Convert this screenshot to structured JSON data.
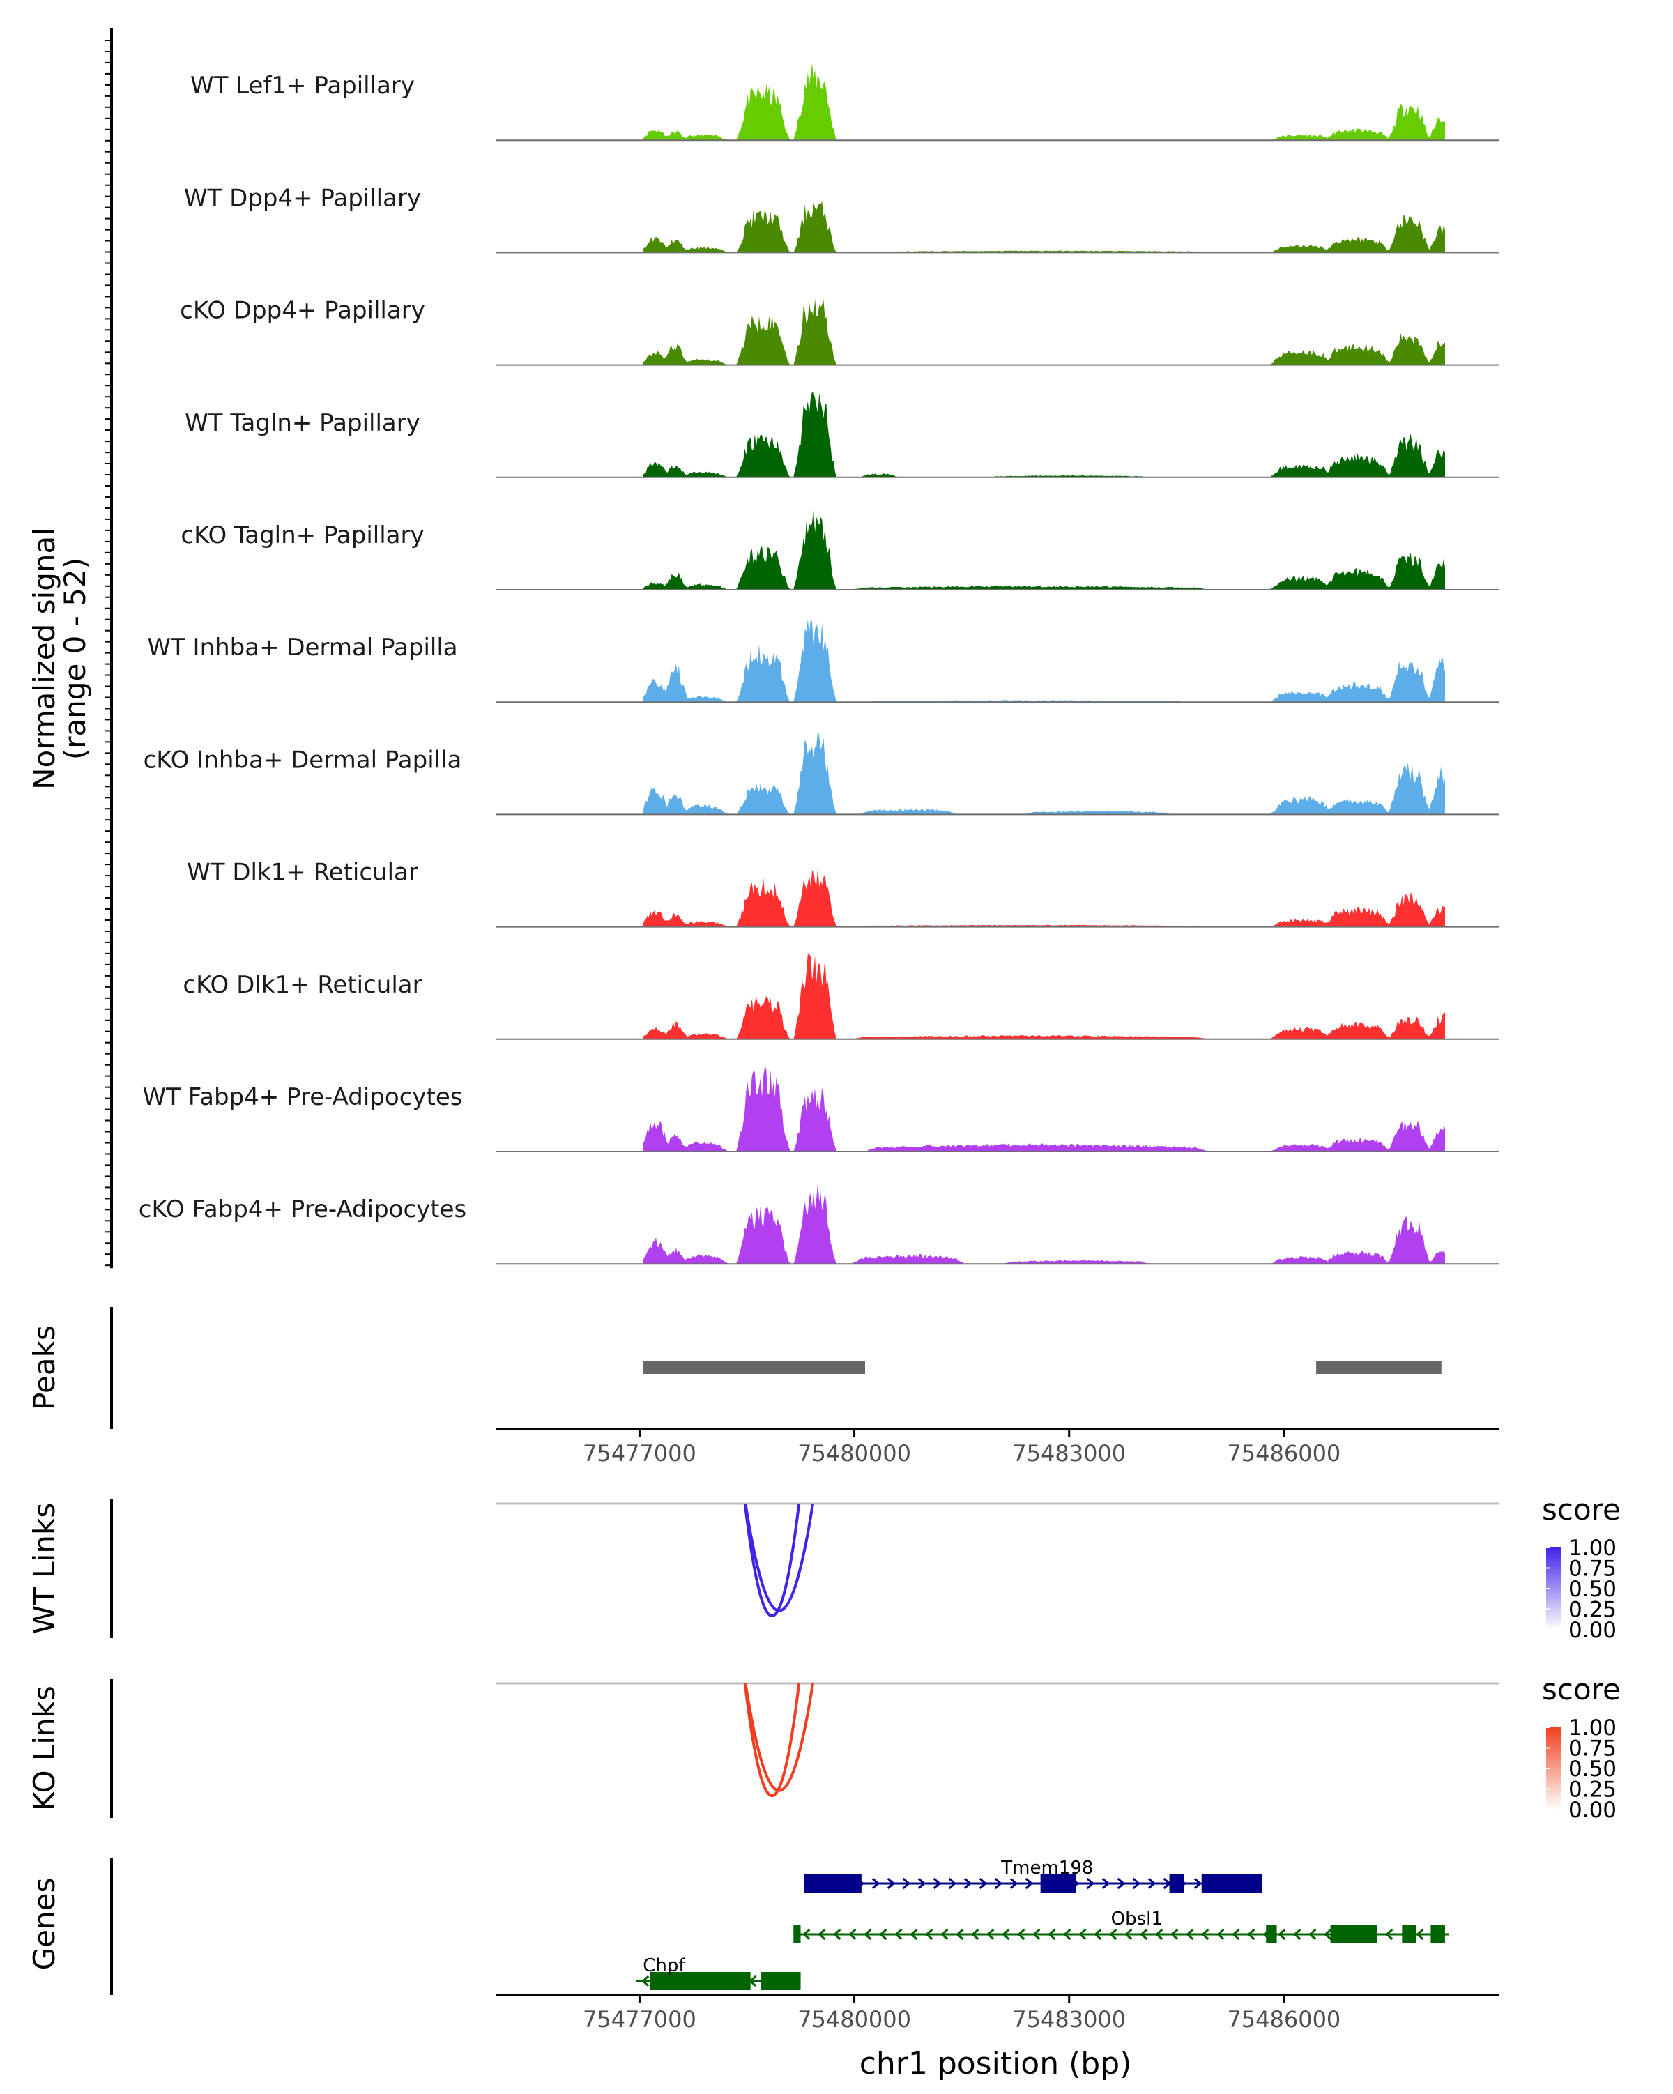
{
  "chart_data": {
    "type": "area",
    "chromosome": "chr1",
    "xlim": [
      75475000,
      75489000
    ],
    "x_ticks": [
      75477000,
      75480000,
      75483000,
      75486000
    ],
    "x_tick_labels": [
      "75477000",
      "75480000",
      "75483000",
      "75486000"
    ],
    "xlabel": "chr1 position (bp)",
    "signal_ylabel_line1": "Normalized signal",
    "signal_ylabel_line2": "(range 0 - 52)",
    "signal_range": [
      0,
      52
    ],
    "tracks": [
      {
        "name": "WT Lef1+ Papillary",
        "color": "#66CC00",
        "peaks": [
          [
            75477150,
            75477300,
            6
          ],
          [
            75477450,
            75477550,
            5
          ],
          [
            75477700,
            75478100,
            3
          ],
          [
            75478500,
            75478950,
            28
          ],
          [
            75479300,
            75479600,
            38
          ],
          [
            75485950,
            75486550,
            3
          ],
          [
            75486700,
            75487350,
            6
          ],
          [
            75487600,
            75487900,
            20
          ],
          [
            75488150,
            75488350,
            14
          ]
        ],
        "dips": []
      },
      {
        "name": "WT Dpp4+ Papillary",
        "color": "#4A8A00",
        "peaks": [
          [
            75477150,
            75477300,
            8
          ],
          [
            75477450,
            75477550,
            7
          ],
          [
            75477700,
            75478100,
            3
          ],
          [
            75478500,
            75478950,
            22
          ],
          [
            75479300,
            75479600,
            27
          ],
          [
            75480500,
            75484800,
            1
          ],
          [
            75485950,
            75486550,
            4
          ],
          [
            75486700,
            75487350,
            8
          ],
          [
            75487600,
            75487900,
            20
          ],
          [
            75488150,
            75488350,
            14
          ]
        ],
        "dips": []
      },
      {
        "name": "cKO Dpp4+ Papillary",
        "color": "#4A8A00",
        "peaks": [
          [
            75477150,
            75477300,
            7
          ],
          [
            75477450,
            75477550,
            11
          ],
          [
            75477700,
            75478100,
            3
          ],
          [
            75478500,
            75478950,
            27
          ],
          [
            75479300,
            75479600,
            36
          ],
          [
            75485950,
            75486550,
            8
          ],
          [
            75486700,
            75487350,
            11
          ],
          [
            75487600,
            75487900,
            17
          ],
          [
            75488150,
            75488350,
            15
          ]
        ],
        "dips": []
      },
      {
        "name": "WT Tagln+ Papillary",
        "color": "#006400",
        "peaks": [
          [
            75477150,
            75477300,
            8
          ],
          [
            75477450,
            75477550,
            6
          ],
          [
            75477700,
            75478100,
            3
          ],
          [
            75478500,
            75478950,
            23
          ],
          [
            75479300,
            75479600,
            47
          ],
          [
            75480200,
            75480500,
            2
          ],
          [
            75482000,
            75484000,
            1
          ],
          [
            75485950,
            75486550,
            7
          ],
          [
            75486700,
            75487350,
            12
          ],
          [
            75487600,
            75487900,
            22
          ],
          [
            75488150,
            75488350,
            16
          ]
        ],
        "dips": []
      },
      {
        "name": "cKO Tagln+ Papillary",
        "color": "#006400",
        "peaks": [
          [
            75477150,
            75477300,
            4
          ],
          [
            75477450,
            75477550,
            9
          ],
          [
            75477700,
            75478100,
            3
          ],
          [
            75478500,
            75478950,
            22
          ],
          [
            75479300,
            75479600,
            40
          ],
          [
            75480100,
            75484800,
            2
          ],
          [
            75485950,
            75486550,
            7
          ],
          [
            75486700,
            75487350,
            11
          ],
          [
            75487600,
            75487900,
            19
          ],
          [
            75488150,
            75488350,
            15
          ]
        ],
        "dips": []
      },
      {
        "name": "WT Inhba+ Dermal Papilla",
        "color": "#5DADE8",
        "peaks": [
          [
            75477150,
            75477300,
            12
          ],
          [
            75477450,
            75477550,
            19
          ],
          [
            75477700,
            75478100,
            3
          ],
          [
            75478500,
            75478950,
            29
          ],
          [
            75479300,
            75479600,
            45
          ],
          [
            75480300,
            75484500,
            1
          ],
          [
            75485950,
            75486550,
            6
          ],
          [
            75486700,
            75487350,
            10
          ],
          [
            75487600,
            75487900,
            23
          ],
          [
            75488150,
            75488350,
            24
          ]
        ],
        "dips": []
      },
      {
        "name": "cKO Inhba+ Dermal Papilla",
        "color": "#5DADE8",
        "peaks": [
          [
            75477150,
            75477300,
            14
          ],
          [
            75477450,
            75477550,
            12
          ],
          [
            75477700,
            75478100,
            5
          ],
          [
            75478500,
            75478950,
            16
          ],
          [
            75479300,
            75479600,
            42
          ],
          [
            75480200,
            75481300,
            3
          ],
          [
            75482500,
            75484300,
            2
          ],
          [
            75485950,
            75486550,
            9
          ],
          [
            75486700,
            75487350,
            8
          ],
          [
            75487600,
            75487900,
            26
          ],
          [
            75488150,
            75488350,
            24
          ]
        ],
        "dips": []
      },
      {
        "name": "WT Dlk1+ Reticular",
        "color": "#FF3030",
        "peaks": [
          [
            75477150,
            75477300,
            9
          ],
          [
            75477450,
            75477550,
            7
          ],
          [
            75477700,
            75478100,
            3
          ],
          [
            75478500,
            75478950,
            24
          ],
          [
            75479300,
            75479600,
            32
          ],
          [
            75480100,
            75484800,
            1
          ],
          [
            75485950,
            75486550,
            4
          ],
          [
            75486700,
            75487350,
            10
          ],
          [
            75487600,
            75487900,
            17
          ],
          [
            75488150,
            75488350,
            11
          ]
        ],
        "dips": []
      },
      {
        "name": "cKO Dlk1+ Reticular",
        "color": "#FF3030",
        "peaks": [
          [
            75477150,
            75477300,
            6
          ],
          [
            75477450,
            75477550,
            9
          ],
          [
            75477700,
            75478100,
            3
          ],
          [
            75478500,
            75478950,
            22
          ],
          [
            75479300,
            75479600,
            45
          ],
          [
            75480100,
            75484800,
            2
          ],
          [
            75485950,
            75486550,
            6
          ],
          [
            75486700,
            75487350,
            9
          ],
          [
            75487600,
            75487900,
            12
          ],
          [
            75488150,
            75488350,
            13
          ]
        ],
        "dips": []
      },
      {
        "name": "WT Fabp4+ Pre-Adipocytes",
        "color": "#B040F0",
        "peaks": [
          [
            75477150,
            75477300,
            18
          ],
          [
            75477450,
            75477550,
            9
          ],
          [
            75477700,
            75478100,
            5
          ],
          [
            75478500,
            75478950,
            42
          ],
          [
            75479300,
            75479600,
            34
          ],
          [
            75480300,
            75484800,
            4
          ],
          [
            75485950,
            75486550,
            4
          ],
          [
            75486700,
            75487350,
            7
          ],
          [
            75487600,
            75487900,
            17
          ],
          [
            75488150,
            75488350,
            15
          ]
        ],
        "dips": []
      },
      {
        "name": "cKO Fabp4+ Pre-Adipocytes",
        "color": "#B040F0",
        "peaks": [
          [
            75477150,
            75477300,
            13
          ],
          [
            75477450,
            75477550,
            8
          ],
          [
            75477700,
            75478100,
            5
          ],
          [
            75478500,
            75478950,
            30
          ],
          [
            75479300,
            75479600,
            40
          ],
          [
            75480100,
            75481400,
            5
          ],
          [
            75482200,
            75484000,
            2
          ],
          [
            75485950,
            75486550,
            4
          ],
          [
            75486700,
            75487350,
            7
          ],
          [
            75487600,
            75487900,
            24
          ],
          [
            75488150,
            75488350,
            8
          ]
        ],
        "dips": []
      }
    ],
    "peaks_track": {
      "label": "Peaks",
      "regions": [
        [
          75477050,
          75480150
        ],
        [
          75486450,
          75488200
        ]
      ],
      "color": "#666666"
    },
    "links_tracks": [
      {
        "label": "WT Links",
        "color": "#3F25E8",
        "links": [
          [
            75478450,
            75479250,
            0.9
          ],
          [
            75478450,
            75479450,
            0.85
          ]
        ],
        "legend_title": "score",
        "legend_ticks": [
          "1.00",
          "0.75",
          "0.50",
          "0.25",
          "0.00"
        ]
      },
      {
        "label": "KO Links",
        "color": "#F03F20",
        "links": [
          [
            75478450,
            75479250,
            0.9
          ],
          [
            75478450,
            75479450,
            0.85
          ]
        ],
        "legend_title": "score",
        "legend_ticks": [
          "1.00",
          "0.75",
          "0.50",
          "0.25",
          "0.00"
        ]
      }
    ],
    "genes_track": {
      "label": "Genes",
      "genes": [
        {
          "name": "Tmem198",
          "strand": "+",
          "start": 75479300,
          "end": 75485700,
          "color": "#00008B",
          "exons": [
            [
              75479300,
              75480100
            ],
            [
              75482600,
              75483100
            ],
            [
              75484400,
              75484600
            ],
            [
              75484850,
              75485700
            ]
          ]
        },
        {
          "name": "Obsl1",
          "strand": "-",
          "start": 75479200,
          "end": 75488300,
          "color": "#006400",
          "exons": [
            [
              75479150,
              75479250
            ],
            [
              75485750,
              75485900
            ],
            [
              75486650,
              75487300
            ],
            [
              75487650,
              75487850
            ],
            [
              75488050,
              75488250
            ]
          ]
        },
        {
          "name": "Chpf",
          "strand": "-",
          "start": 75476950,
          "end": 75479250,
          "color": "#006400",
          "exons": [
            [
              75477150,
              75478550
            ],
            [
              75478700,
              75479250
            ]
          ]
        }
      ]
    }
  }
}
